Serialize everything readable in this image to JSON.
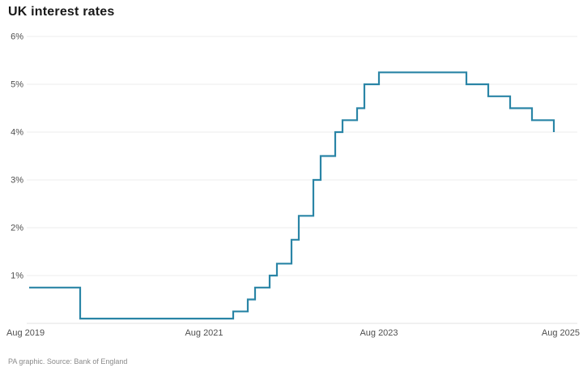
{
  "page": {
    "title": "UK interest rates",
    "footer": "PA graphic. Source: Bank of England"
  },
  "colors": {
    "line": "#2a85a6",
    "grid": "#ececec",
    "axis_line": "#e0e0e0",
    "tick_text": "#4f4f4f",
    "title_text": "#191919",
    "footer_text": "#8a8a8a",
    "background": "#ffffff"
  },
  "chart_data": {
    "type": "line",
    "line_style": "step-after",
    "title": "UK interest rates",
    "xlabel": "",
    "ylabel": "",
    "unit": "%",
    "ylim": [
      0,
      6
    ],
    "grid": "horizontal",
    "legend": "none",
    "y_ticks": [
      {
        "value": 1,
        "label": "1%"
      },
      {
        "value": 2,
        "label": "2%"
      },
      {
        "value": 3,
        "label": "3%"
      },
      {
        "value": 4,
        "label": "4%"
      },
      {
        "value": 5,
        "label": "5%"
      },
      {
        "value": 6,
        "label": "6%"
      }
    ],
    "x_ticks": [
      {
        "date": "2019-08",
        "label": "Aug 2019"
      },
      {
        "date": "2021-08",
        "label": "Aug 2021"
      },
      {
        "date": "2023-08",
        "label": "Aug 2023"
      },
      {
        "date": "2025-08",
        "label": "Aug 2025"
      }
    ],
    "x_range": [
      "2019-08",
      "2025-08"
    ],
    "series": [
      {
        "name": "UK interest rate",
        "points": [
          {
            "date": "2019-08",
            "rate": 0.75
          },
          {
            "date": "2020-03",
            "rate": 0.1
          },
          {
            "date": "2021-12",
            "rate": 0.25
          },
          {
            "date": "2022-02",
            "rate": 0.5
          },
          {
            "date": "2022-03",
            "rate": 0.75
          },
          {
            "date": "2022-05",
            "rate": 1.0
          },
          {
            "date": "2022-06",
            "rate": 1.25
          },
          {
            "date": "2022-08",
            "rate": 1.75
          },
          {
            "date": "2022-09",
            "rate": 2.25
          },
          {
            "date": "2022-11",
            "rate": 3.0
          },
          {
            "date": "2022-12",
            "rate": 3.5
          },
          {
            "date": "2023-02",
            "rate": 4.0
          },
          {
            "date": "2023-03",
            "rate": 4.25
          },
          {
            "date": "2023-05",
            "rate": 4.5
          },
          {
            "date": "2023-06",
            "rate": 5.0
          },
          {
            "date": "2023-08",
            "rate": 5.25
          },
          {
            "date": "2024-08",
            "rate": 5.0
          },
          {
            "date": "2024-11",
            "rate": 4.75
          },
          {
            "date": "2025-02",
            "rate": 4.5
          },
          {
            "date": "2025-05",
            "rate": 4.25
          },
          {
            "date": "2025-08",
            "rate": 4.0
          }
        ]
      }
    ]
  }
}
